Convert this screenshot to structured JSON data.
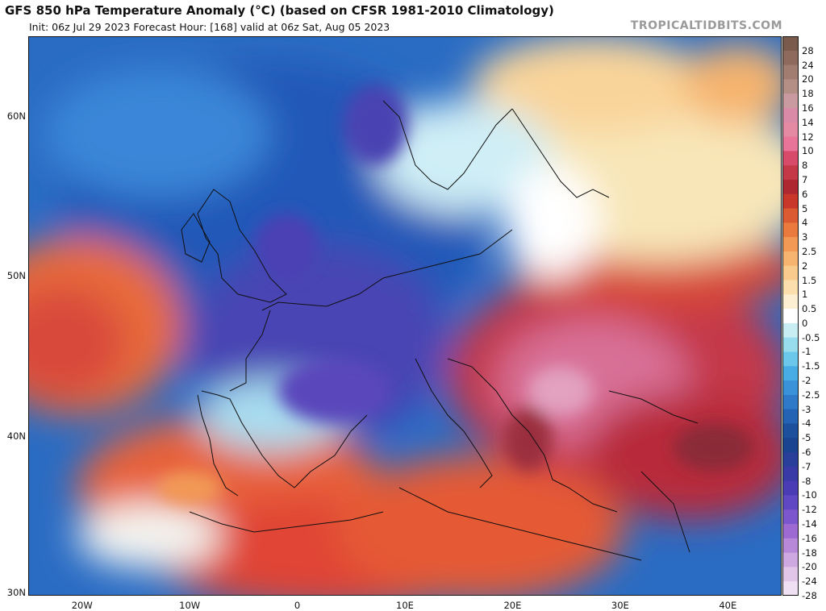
{
  "header": {
    "title": "GFS 850 hPa Temperature Anomaly (°C) (based on CFSR 1981-2010 Climatology)",
    "subtitle": "Init: 06z Jul 29 2023   Forecast Hour: [168]   valid at 06z Sat, Aug 05 2023",
    "brand": "TROPICALTIDBITS.COM"
  },
  "map": {
    "lat_range": [
      30,
      65
    ],
    "lon_range": [
      -25,
      45
    ],
    "lat_labels": [
      "60N",
      "50N",
      "40N",
      "30N"
    ],
    "lat_values": [
      60,
      50,
      40,
      30
    ],
    "lon_labels": [
      "20W",
      "10W",
      "0",
      "10E",
      "20E",
      "30E",
      "40E"
    ],
    "lon_values": [
      -20,
      -10,
      0,
      10,
      20,
      30,
      40
    ]
  },
  "colorbar": {
    "labels": [
      "28",
      "24",
      "20",
      "18",
      "16",
      "14",
      "12",
      "10",
      "8",
      "7",
      "6",
      "5",
      "4",
      "3",
      "2.5",
      "2",
      "1.5",
      "1",
      "0.5",
      "0",
      "-0.5",
      "-1",
      "-1.5",
      "-2",
      "-2.5",
      "-3",
      "-4",
      "-5",
      "-6",
      "-7",
      "-8",
      "-10",
      "-12",
      "-14",
      "-16",
      "-18",
      "-20",
      "-24",
      "-28"
    ],
    "colors": [
      "#7a5a4a",
      "#8d6a5c",
      "#a07d70",
      "#b38f86",
      "#c99aa0",
      "#d98aa6",
      "#e48aa2",
      "#e8749a",
      "#d84a6a",
      "#c43848",
      "#ad2830",
      "#c8372a",
      "#dc5a32",
      "#ea7a3e",
      "#f29a55",
      "#f6b470",
      "#f9cc8e",
      "#fbe0ae",
      "#fdf0d2",
      "#ffffff",
      "#c8eef4",
      "#98ddee",
      "#6cc8ea",
      "#48ade4",
      "#3a93d8",
      "#2e79c8",
      "#2463b4",
      "#1c509c",
      "#1a4490",
      "#2a3f9a",
      "#3a3aa6",
      "#4a3cb4",
      "#6048c4",
      "#7c56cc",
      "#9c6ad2",
      "#b888d8",
      "#cea8e0",
      "#e2c6ea",
      "#f0e0f4"
    ]
  }
}
